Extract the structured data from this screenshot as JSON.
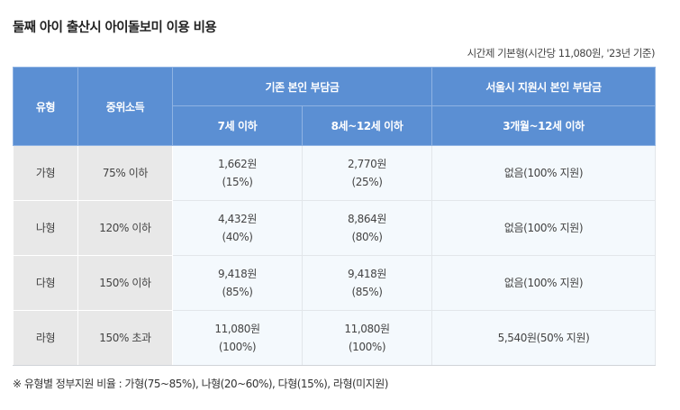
{
  "title": "둘째 아이 출산시 아이돌보미 이용 비용",
  "rate_note": "시간제 기본형(시간당 11,080원, '23년 기준)",
  "headers": {
    "type": "유형",
    "income": "중위소득",
    "existing": "기존 본인 부담금",
    "seoul": "서울시 지원시 본인 부담금",
    "age_under7": "7세 이하",
    "age_8to12": "8세~12세 이하",
    "age_3m_to12": "3개월~12세 이하"
  },
  "rows": [
    {
      "type": "가형",
      "income": "75% 이하",
      "under7_amount": "1,662원",
      "under7_rate": "(15%)",
      "age8to12_amount": "2,770원",
      "age8to12_rate": "(25%)",
      "seoul": "없음(100% 지원)"
    },
    {
      "type": "나형",
      "income": "120% 이하",
      "under7_amount": "4,432원",
      "under7_rate": "(40%)",
      "age8to12_amount": "8,864원",
      "age8to12_rate": "(80%)",
      "seoul": "없음(100% 지원)"
    },
    {
      "type": "다형",
      "income": "150% 이하",
      "under7_amount": "9,418원",
      "under7_rate": "(85%)",
      "age8to12_amount": "9,418원",
      "age8to12_rate": "(85%)",
      "seoul": "없음(100% 지원)"
    },
    {
      "type": "라형",
      "income": "150% 초과",
      "under7_amount": "11,080원",
      "under7_rate": "(100%)",
      "age8to12_amount": "11,080원",
      "age8to12_rate": "(100%)",
      "seoul": "5,540원(50% 지원)"
    }
  ],
  "footnote": "※ 유형별 정부지원 비율 : 가형(75~85%), 나형(20~60%), 다형(15%), 라형(미지원)",
  "colors": {
    "header_bg": "#5b8fd3",
    "label_bg": "#e8e8e8",
    "cell_bg": "#f4f9fd"
  }
}
